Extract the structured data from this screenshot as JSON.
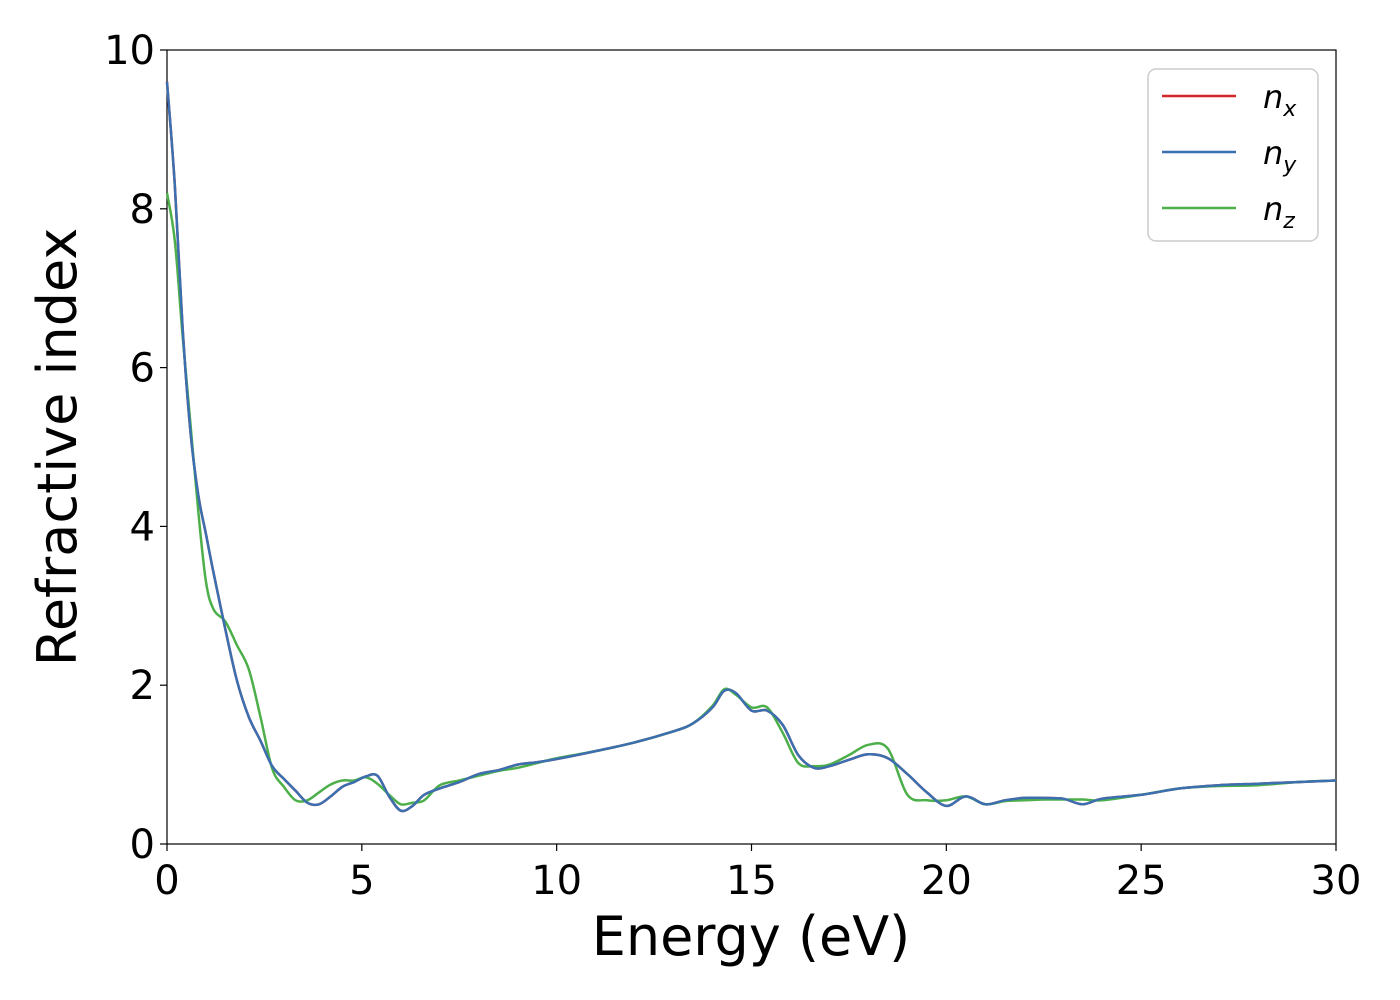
{
  "chart_data": {
    "type": "line",
    "title": "",
    "xlabel": "Energy (eV)",
    "ylabel": "Refractive index",
    "xlim": [
      0,
      30
    ],
    "ylim": [
      0,
      10
    ],
    "xticks": [
      0,
      5,
      10,
      15,
      20,
      25,
      30
    ],
    "yticks": [
      0,
      2,
      4,
      6,
      8,
      10
    ],
    "xtick_labels": [
      "0",
      "5",
      "10",
      "15",
      "20",
      "25",
      "30"
    ],
    "ytick_labels": [
      "0",
      "2",
      "4",
      "6",
      "8",
      "10"
    ],
    "grid": false,
    "legend": "top-right",
    "series": [
      {
        "name": "n",
        "sub": "x",
        "color": "#d62728",
        "x": [
          0,
          0.2,
          0.4,
          0.6,
          0.8,
          1.0,
          1.2,
          1.5,
          1.8,
          2.1,
          2.4,
          2.7,
          3.0,
          3.3,
          3.6,
          3.9,
          4.2,
          4.5,
          4.8,
          5.1,
          5.4,
          5.7,
          6.0,
          6.3,
          6.6,
          7.0,
          7.5,
          8.0,
          8.5,
          9.0,
          9.5,
          10,
          11,
          12,
          13,
          13.5,
          14,
          14.3,
          14.6,
          15.0,
          15.4,
          15.8,
          16.2,
          16.6,
          17.0,
          17.5,
          18.0,
          18.5,
          19.0,
          19.5,
          20.0,
          20.5,
          21.0,
          21.5,
          22,
          22.5,
          23,
          23.5,
          24,
          25,
          26,
          27,
          28,
          29,
          30
        ],
        "y": [
          9.6,
          8.3,
          6.5,
          5.2,
          4.4,
          3.9,
          3.4,
          2.7,
          2.05,
          1.6,
          1.3,
          0.98,
          0.82,
          0.67,
          0.52,
          0.5,
          0.6,
          0.72,
          0.78,
          0.85,
          0.86,
          0.6,
          0.42,
          0.48,
          0.62,
          0.7,
          0.78,
          0.88,
          0.93,
          1.0,
          1.03,
          1.07,
          1.17,
          1.28,
          1.42,
          1.52,
          1.72,
          1.93,
          1.9,
          1.68,
          1.68,
          1.5,
          1.12,
          0.96,
          0.98,
          1.06,
          1.13,
          1.08,
          0.88,
          0.65,
          0.48,
          0.6,
          0.5,
          0.55,
          0.58,
          0.58,
          0.57,
          0.5,
          0.57,
          0.62,
          0.7,
          0.74,
          0.76,
          0.78,
          0.8
        ]
      },
      {
        "name": "n",
        "sub": "y",
        "color": "#3a6fb0",
        "x": [
          0,
          0.2,
          0.4,
          0.6,
          0.8,
          1.0,
          1.2,
          1.5,
          1.8,
          2.1,
          2.4,
          2.7,
          3.0,
          3.3,
          3.6,
          3.9,
          4.2,
          4.5,
          4.8,
          5.1,
          5.4,
          5.7,
          6.0,
          6.3,
          6.6,
          7.0,
          7.5,
          8.0,
          8.5,
          9.0,
          9.5,
          10,
          11,
          12,
          13,
          13.5,
          14,
          14.3,
          14.6,
          15.0,
          15.4,
          15.8,
          16.2,
          16.6,
          17.0,
          17.5,
          18.0,
          18.5,
          19.0,
          19.5,
          20.0,
          20.5,
          21.0,
          21.5,
          22,
          22.5,
          23,
          23.5,
          24,
          25,
          26,
          27,
          28,
          29,
          30
        ],
        "y": [
          9.6,
          8.3,
          6.5,
          5.2,
          4.4,
          3.9,
          3.4,
          2.7,
          2.05,
          1.6,
          1.3,
          0.98,
          0.82,
          0.67,
          0.52,
          0.5,
          0.6,
          0.72,
          0.78,
          0.85,
          0.86,
          0.6,
          0.42,
          0.48,
          0.62,
          0.7,
          0.78,
          0.88,
          0.93,
          1.0,
          1.03,
          1.07,
          1.17,
          1.28,
          1.42,
          1.52,
          1.72,
          1.93,
          1.9,
          1.68,
          1.68,
          1.5,
          1.12,
          0.96,
          0.98,
          1.06,
          1.13,
          1.08,
          0.88,
          0.65,
          0.48,
          0.6,
          0.5,
          0.55,
          0.58,
          0.58,
          0.57,
          0.5,
          0.57,
          0.62,
          0.7,
          0.74,
          0.76,
          0.78,
          0.8
        ]
      },
      {
        "name": "n",
        "sub": "z",
        "color": "#4daf4a",
        "x": [
          0,
          0.2,
          0.4,
          0.6,
          0.8,
          1.0,
          1.2,
          1.5,
          1.8,
          2.1,
          2.4,
          2.7,
          3.0,
          3.3,
          3.6,
          3.9,
          4.2,
          4.5,
          4.8,
          5.1,
          5.4,
          5.7,
          6.0,
          6.3,
          6.6,
          7.0,
          7.5,
          8.0,
          8.5,
          9.0,
          9.5,
          10,
          11,
          12,
          13,
          13.5,
          14,
          14.3,
          14.6,
          15.0,
          15.4,
          15.8,
          16.2,
          16.6,
          17.0,
          17.5,
          18.0,
          18.5,
          19.0,
          19.5,
          20.0,
          20.5,
          21.0,
          21.5,
          22,
          22.5,
          23,
          23.5,
          24,
          25,
          26,
          27,
          28,
          29,
          30
        ],
        "y": [
          8.2,
          7.6,
          6.4,
          5.3,
          4.2,
          3.3,
          2.95,
          2.8,
          2.5,
          2.2,
          1.6,
          0.95,
          0.72,
          0.55,
          0.55,
          0.65,
          0.75,
          0.8,
          0.8,
          0.84,
          0.76,
          0.62,
          0.5,
          0.52,
          0.55,
          0.74,
          0.8,
          0.86,
          0.92,
          0.96,
          1.02,
          1.08,
          1.17,
          1.28,
          1.42,
          1.52,
          1.74,
          1.95,
          1.88,
          1.72,
          1.72,
          1.4,
          1.02,
          0.98,
          1.0,
          1.12,
          1.25,
          1.2,
          0.62,
          0.55,
          0.55,
          0.6,
          0.5,
          0.54,
          0.55,
          0.56,
          0.56,
          0.56,
          0.55,
          0.62,
          0.7,
          0.73,
          0.74,
          0.78,
          0.8
        ]
      }
    ]
  }
}
